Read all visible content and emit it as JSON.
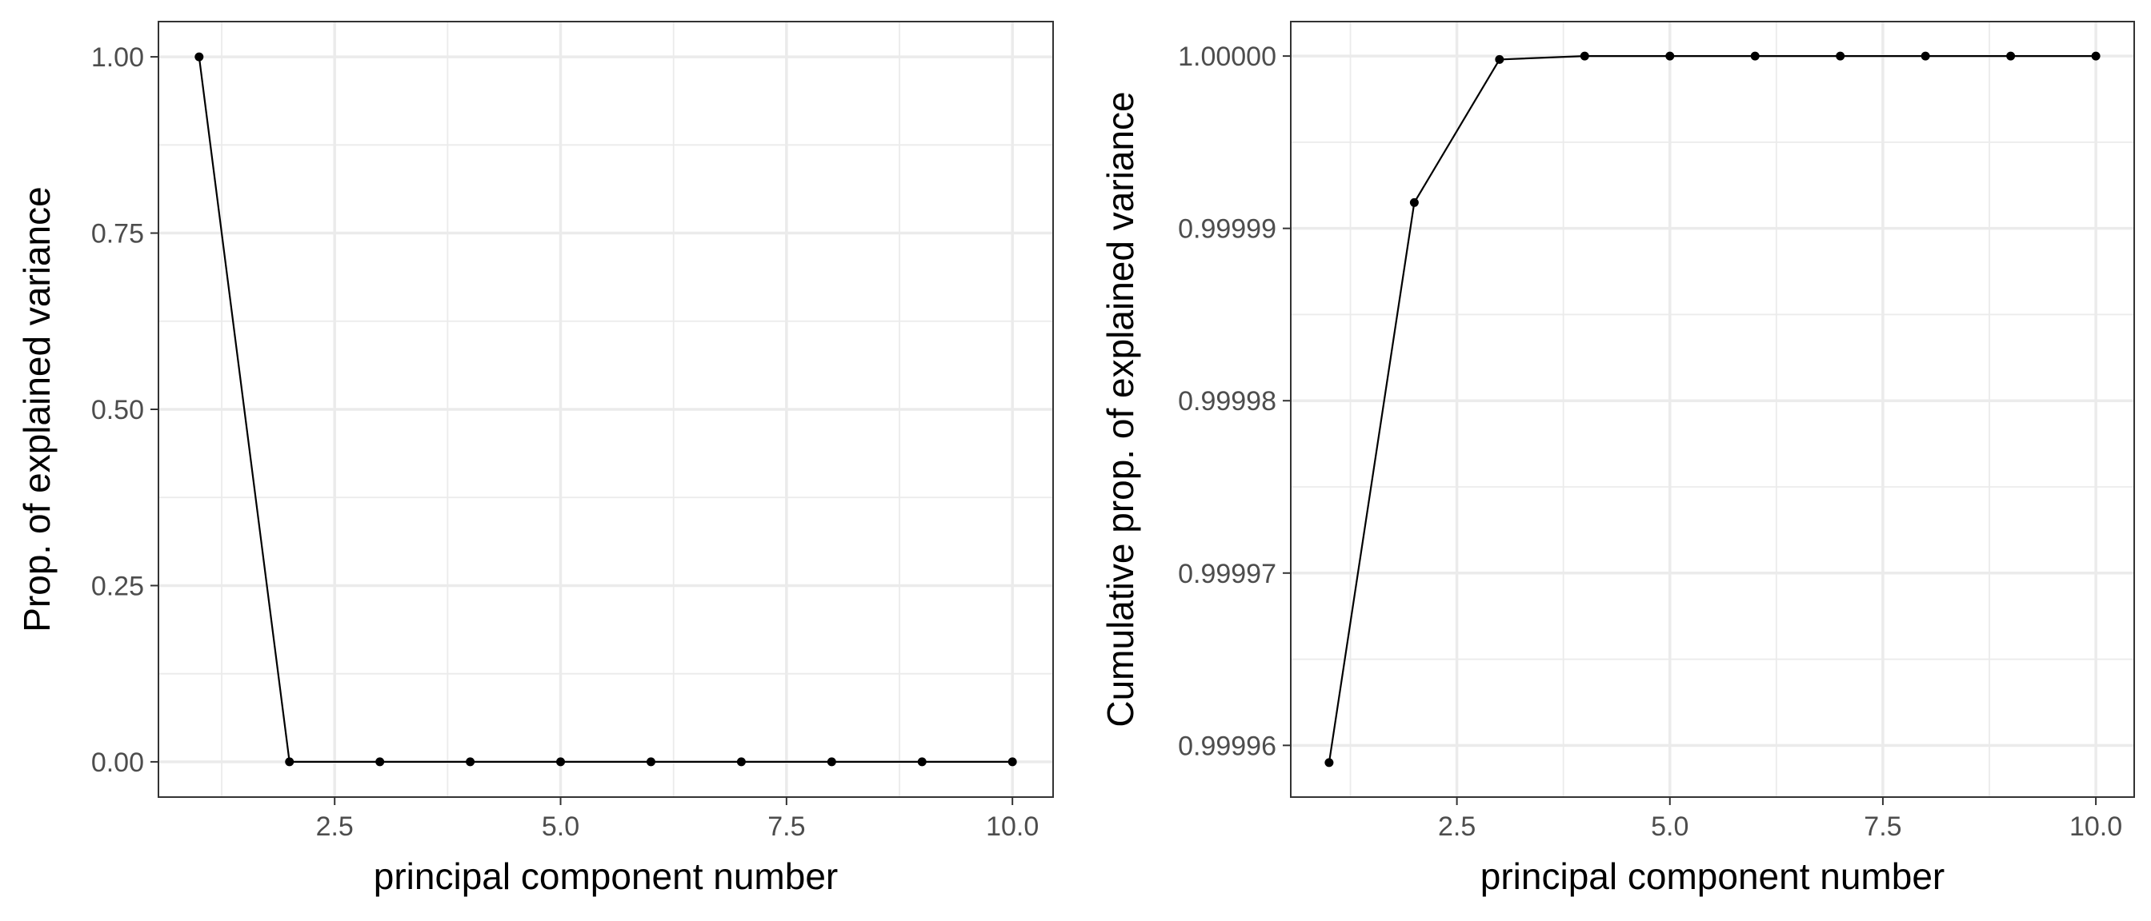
{
  "chart_data": [
    {
      "type": "line",
      "xlabel": "principal component number",
      "ylabel": "Prop. of explained variance",
      "xlim": [
        0.55,
        10.45
      ],
      "ylim": [
        -0.05,
        1.05
      ],
      "x_ticks": [
        2.5,
        5.0,
        7.5,
        10.0
      ],
      "x_tick_labels": [
        "2.5",
        "5.0",
        "7.5",
        "10.0"
      ],
      "y_ticks": [
        0.0,
        0.25,
        0.5,
        0.75,
        1.0
      ],
      "y_tick_labels": [
        "0.00",
        "0.25",
        "0.50",
        "0.75",
        "1.00"
      ],
      "grid": true,
      "series": [
        {
          "x": [
            1,
            2,
            3,
            4,
            5,
            6,
            7,
            8,
            9,
            10
          ],
          "y": [
            1.0,
            0.0,
            0.0,
            0.0,
            0.0,
            0.0,
            0.0,
            0.0,
            0.0,
            0.0
          ],
          "color": "#000000"
        }
      ]
    },
    {
      "type": "line",
      "xlabel": "principal component number",
      "ylabel": "Cumulative prop. of explained variance",
      "xlim": [
        0.55,
        10.45
      ],
      "ylim": [
        0.999957,
        1.000002
      ],
      "x_ticks": [
        2.5,
        5.0,
        7.5,
        10.0
      ],
      "x_tick_labels": [
        "2.5",
        "5.0",
        "7.5",
        "10.0"
      ],
      "y_ticks": [
        0.99996,
        0.99997,
        0.99998,
        0.99999,
        1.0
      ],
      "y_tick_labels": [
        "0.99996",
        "0.99997",
        "0.99998",
        "0.99999",
        "1.00000"
      ],
      "grid": true,
      "series": [
        {
          "x": [
            1,
            2,
            3,
            4,
            5,
            6,
            7,
            8,
            9,
            10
          ],
          "y": [
            0.999959,
            0.9999915,
            0.9999998,
            1.0,
            1.0,
            1.0,
            1.0,
            1.0,
            1.0,
            1.0
          ],
          "color": "#000000"
        }
      ]
    }
  ]
}
